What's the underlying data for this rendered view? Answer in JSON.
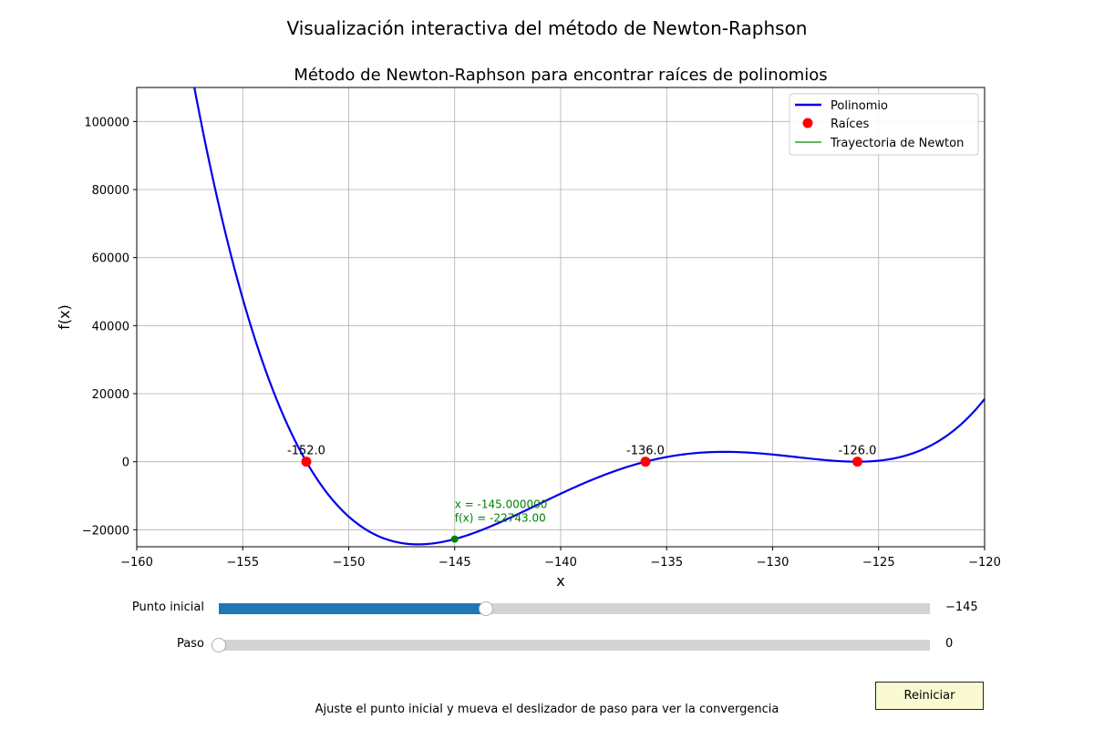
{
  "figure": {
    "suptitle": "Visualización interactiva del método de Newton-Raphson",
    "footer": "Ajuste el punto inicial y mueva el deslizador de paso para ver la convergencia"
  },
  "chart_data": {
    "type": "line",
    "title": "Método de Newton-Raphson para encontrar raíces de polinomios",
    "xlabel": "x",
    "ylabel": "f(x)",
    "xlim": [
      -160,
      -120
    ],
    "ylim": [
      -25000,
      110000
    ],
    "xticks": [
      -160,
      -155,
      -150,
      -145,
      -140,
      -135,
      -130,
      -125,
      -120
    ],
    "xtick_labels": [
      "−160",
      "−155",
      "−150",
      "−145",
      "−140",
      "−135",
      "−130",
      "−125",
      "−120"
    ],
    "yticks": [
      -20000,
      0,
      20000,
      40000,
      60000,
      80000,
      100000
    ],
    "ytick_labels": [
      "−20000",
      "0",
      "20000",
      "40000",
      "60000",
      "80000",
      "100000"
    ],
    "grid": true,
    "legend": {
      "position": "upper right",
      "entries": [
        "Polinomio",
        "Raíces",
        "Trayectoria de Newton"
      ]
    },
    "polynomial_roots": [
      -152,
      -136,
      -126,
      -126
    ],
    "series": [
      {
        "name": "Polinomio",
        "kind": "line",
        "color": "#0000ee"
      },
      {
        "name": "Raíces",
        "kind": "points",
        "color": "#ff0000",
        "x": [
          -152,
          -136,
          -126
        ],
        "y": [
          0,
          0,
          0
        ],
        "labels": [
          "-152.0",
          "-136.0",
          "-126.0"
        ]
      },
      {
        "name": "Trayectoria de Newton",
        "kind": "line",
        "color": "#2ca02c",
        "x": [
          -145
        ],
        "y": [
          -22743
        ]
      }
    ],
    "current_point": {
      "x": -145,
      "y": -22743,
      "color": "#008000",
      "label_line1": "x = -145.000000",
      "label_line2": "f(x) = -22743.00"
    }
  },
  "controls": {
    "start_slider": {
      "label": "Punto inicial",
      "min": -160,
      "max": -120,
      "value": -145,
      "value_text": "−145",
      "fill_color": "#1f77b4"
    },
    "step_slider": {
      "label": "Paso",
      "min": 0,
      "max": 10,
      "value": 0,
      "value_text": "0"
    },
    "reset_button": {
      "label": "Reiniciar"
    }
  }
}
